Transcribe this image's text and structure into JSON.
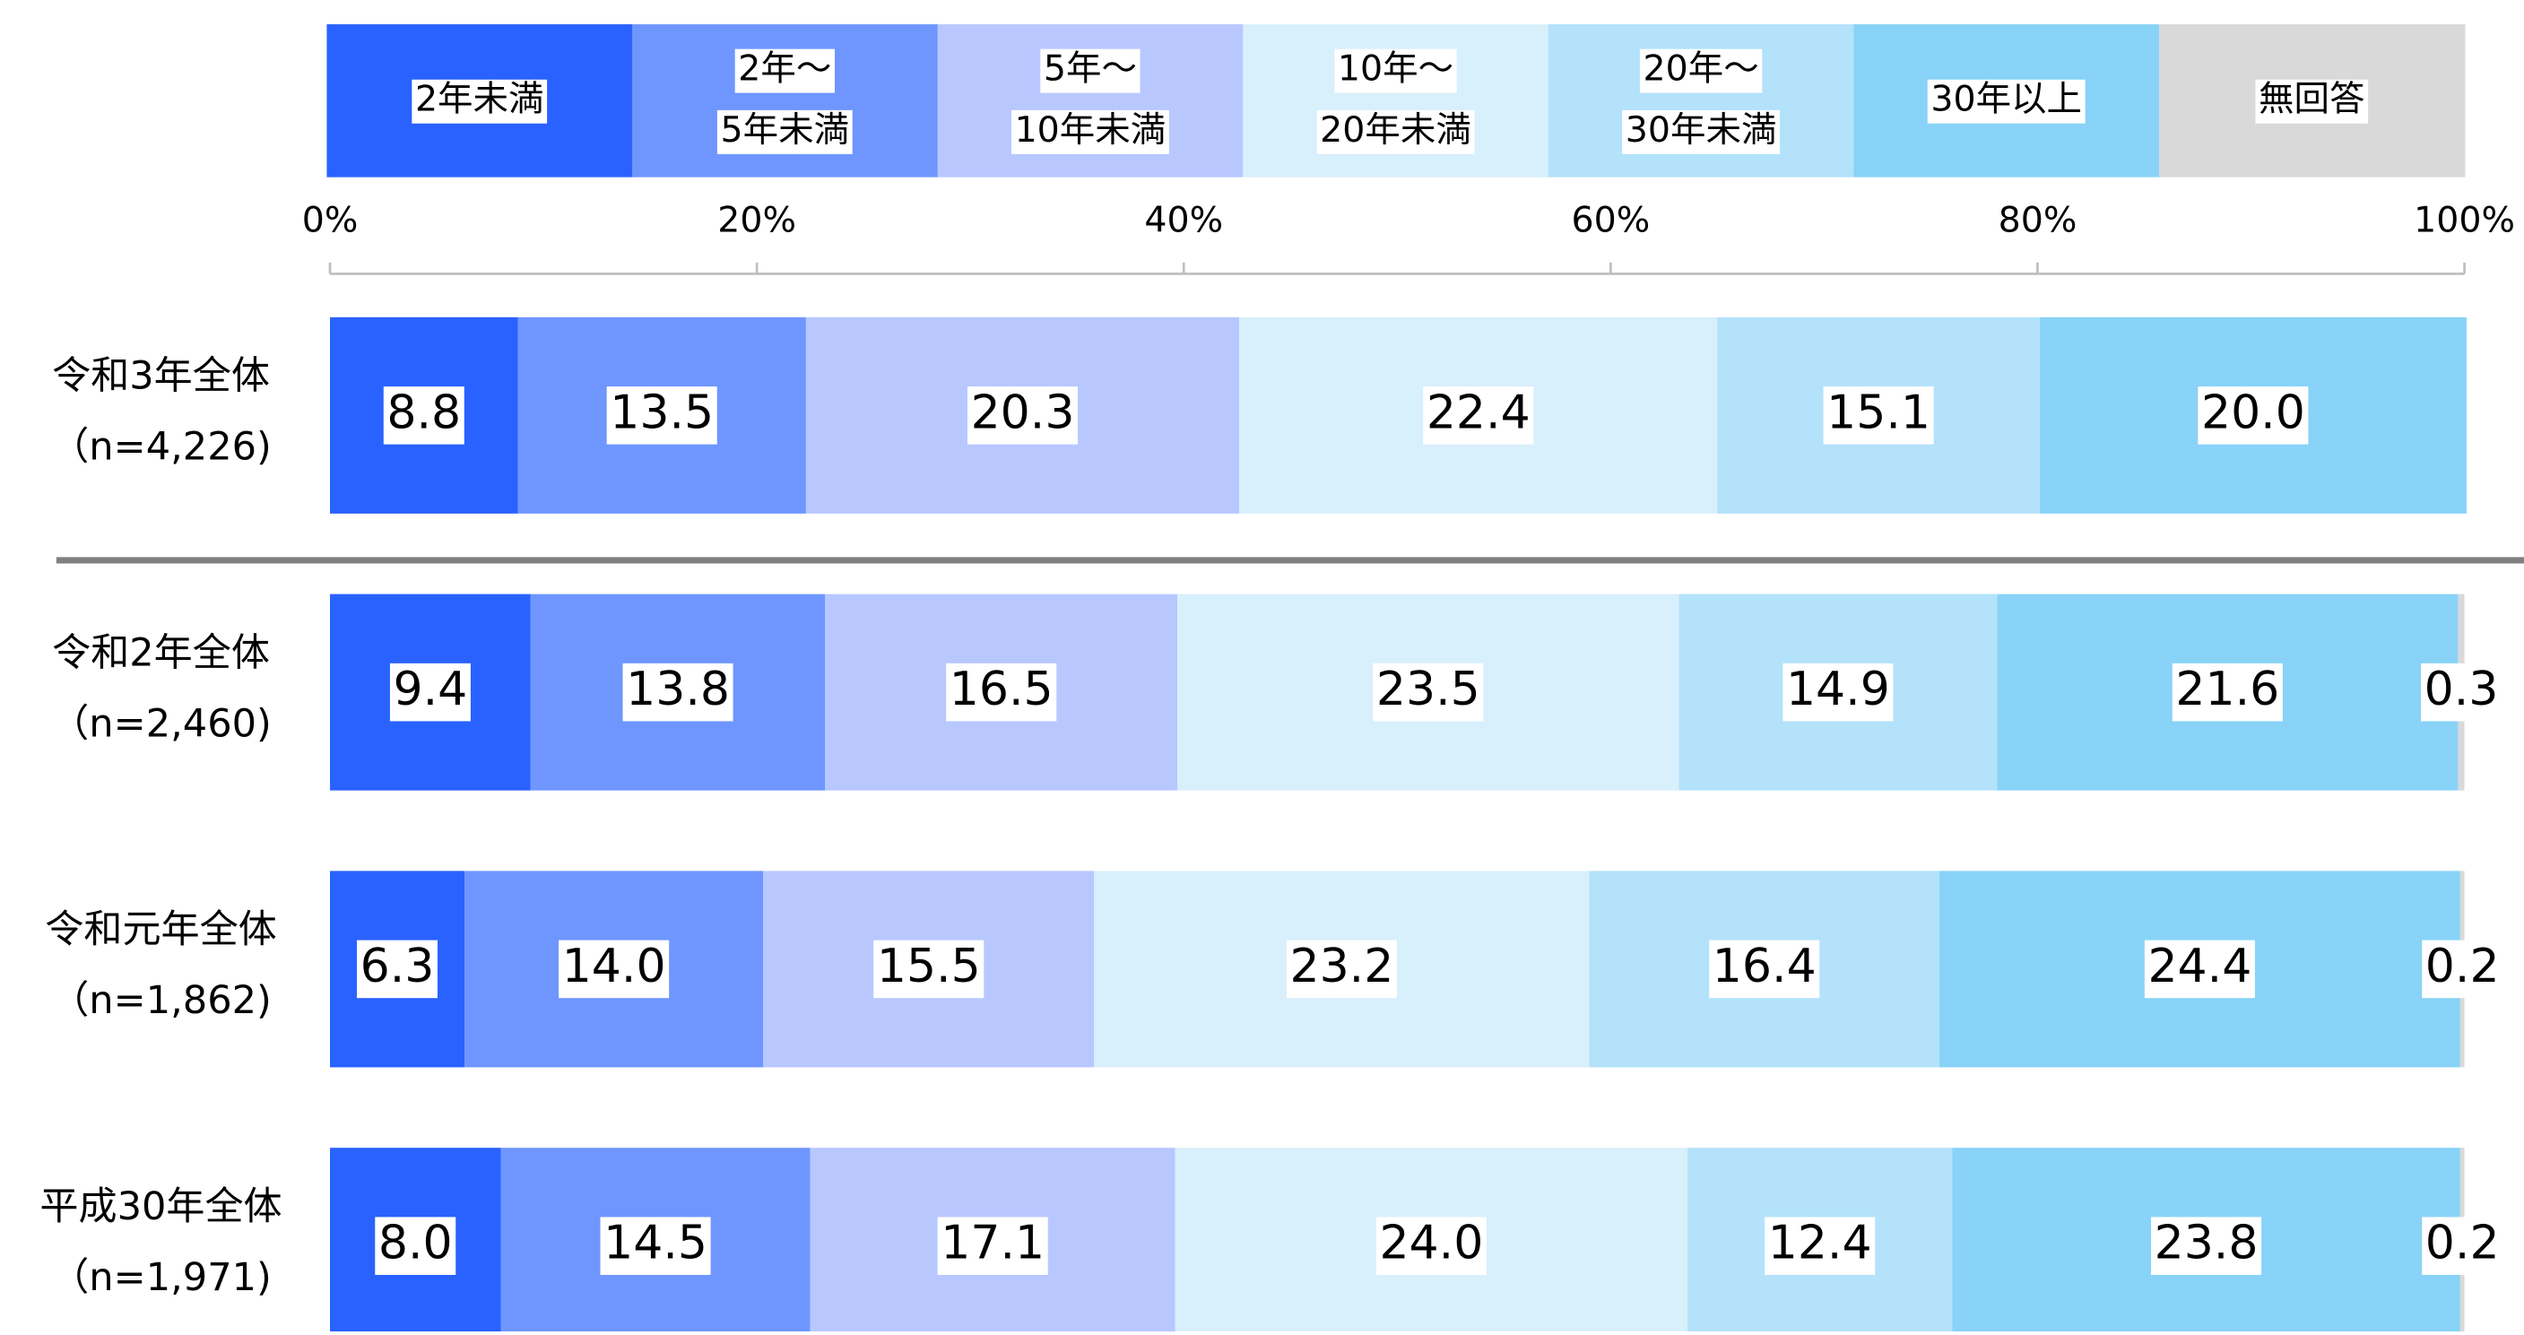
{
  "chart_data": {
    "type": "stacked-bar-horizontal",
    "categories": [
      [
        "令和3年全体",
        "（n=4,226)"
      ],
      [
        "令和2年全体",
        "（n=2,460)"
      ],
      [
        "令和元年全体",
        "（n=1,862)"
      ],
      [
        "平成30年全体",
        "（n=1,971)"
      ]
    ],
    "xlim": [
      0,
      100
    ],
    "xticks": [
      {
        "value": 0,
        "label": "0%"
      },
      {
        "value": 20,
        "label": "20%"
      },
      {
        "value": 40,
        "label": "40%"
      },
      {
        "value": 60,
        "label": "60%"
      },
      {
        "value": 80,
        "label": "80%"
      },
      {
        "value": 100,
        "label": "100%"
      }
    ],
    "legend": "top",
    "series": [
      {
        "name": [
          "2年未満"
        ],
        "color": "#2962ff",
        "values": [
          8.8,
          9.4,
          6.3,
          8.0
        ],
        "value_labels": [
          "8.8",
          "9.4",
          "6.3",
          "8.0"
        ]
      },
      {
        "name": [
          "2年～",
          "5年未満"
        ],
        "color": "#6f96ff",
        "values": [
          13.5,
          13.8,
          14.0,
          14.5
        ],
        "value_labels": [
          "13.5",
          "13.8",
          "14.0",
          "14.5"
        ]
      },
      {
        "name": [
          "5年～",
          "10年未満"
        ],
        "color": "#b8c8ff",
        "values": [
          20.3,
          16.5,
          15.5,
          17.1
        ],
        "value_labels": [
          "20.3",
          "16.5",
          "15.5",
          "17.1"
        ]
      },
      {
        "name": [
          "10年～",
          "20年未満"
        ],
        "color": "#d8effc",
        "values": [
          22.4,
          23.5,
          23.2,
          24.0
        ],
        "value_labels": [
          "22.4",
          "23.5",
          "23.2",
          "24.0"
        ]
      },
      {
        "name": [
          "20年～",
          "30年未満"
        ],
        "color": "#b3e2fa",
        "values": [
          15.1,
          14.9,
          16.4,
          12.4
        ],
        "value_labels": [
          "15.1",
          "14.9",
          "16.4",
          "12.4"
        ]
      },
      {
        "name": [
          "30年以上"
        ],
        "color": "#88d3f7",
        "values": [
          20.0,
          21.6,
          24.4,
          23.8
        ],
        "value_labels": [
          "20.0",
          "21.6",
          "24.4",
          "23.8"
        ]
      },
      {
        "name": [
          "無回答"
        ],
        "color": "#d9d9d9",
        "values": [
          null,
          0.3,
          0.2,
          0.2
        ],
        "value_labels": [
          null,
          "0.3",
          "0.2",
          "0.2"
        ]
      }
    ]
  }
}
